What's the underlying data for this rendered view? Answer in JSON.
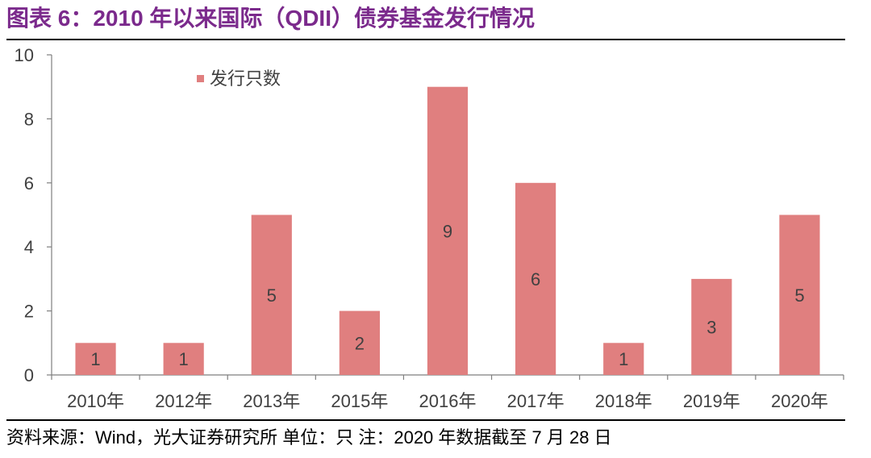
{
  "header": {
    "title": "图表 6：2010 年以来国际（QDII）债券基金发行情况",
    "title_color": "#7b2a8c"
  },
  "chart_data": {
    "type": "bar",
    "categories": [
      "2010年",
      "2012年",
      "2013年",
      "2015年",
      "2016年",
      "2017年",
      "2018年",
      "2019年",
      "2020年"
    ],
    "series": [
      {
        "name": "发行只数",
        "values": [
          1,
          1,
          5,
          2,
          9,
          6,
          1,
          3,
          5
        ],
        "color": "#e07f7f"
      }
    ],
    "data_labels": [
      "1",
      "1",
      "5",
      "2",
      "9",
      "6",
      "1",
      "3",
      "5"
    ],
    "ylim": [
      0,
      10
    ],
    "yticks": [
      0,
      2,
      4,
      6,
      8,
      10
    ],
    "ytick_labels": [
      "0",
      "2",
      "4",
      "6",
      "8",
      "10"
    ],
    "xlabel": "",
    "ylabel": "",
    "grid": false,
    "legend": "top-left"
  },
  "footer": {
    "source": "资料来源：Wind，光大证券研究所   单位：只   注：2020 年数据截至 7 月 28 日"
  }
}
